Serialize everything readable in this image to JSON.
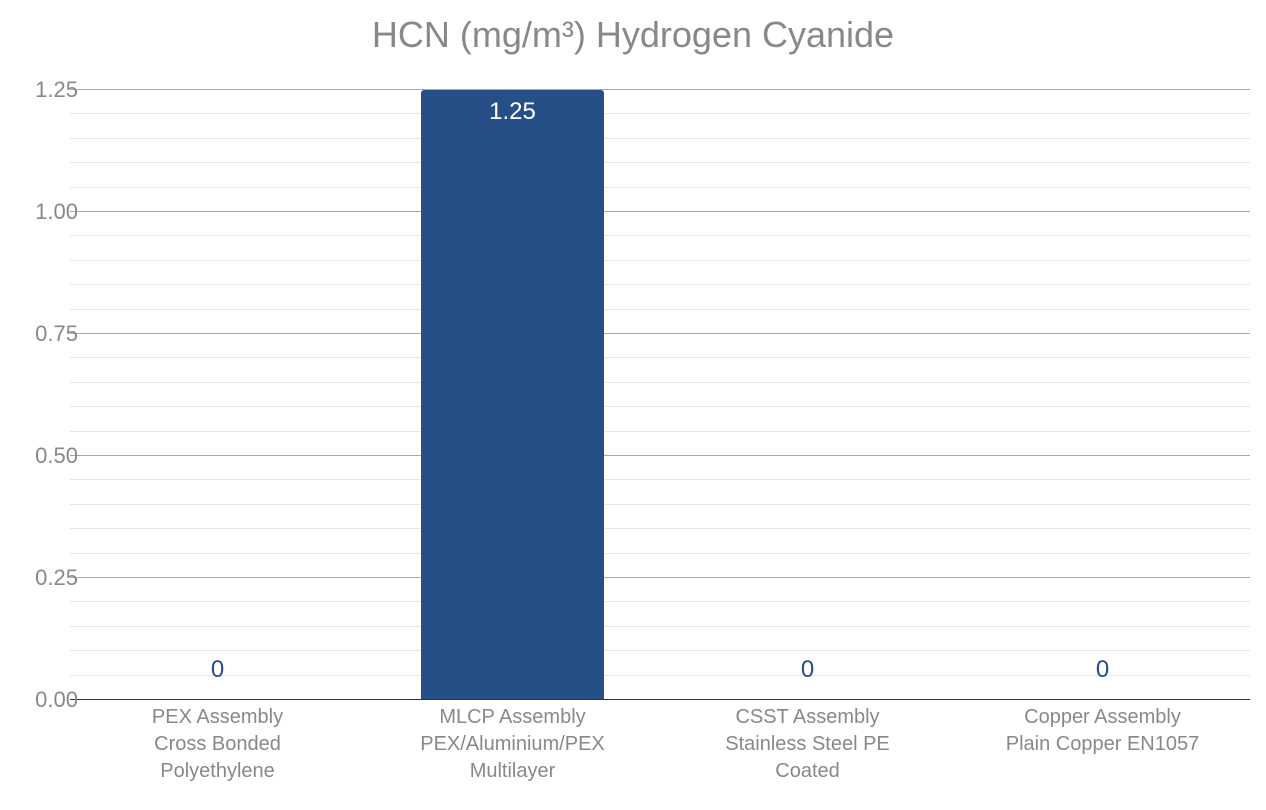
{
  "chart": {
    "type": "bar",
    "title": "HCN (mg/m³) Hydrogen Cyanide",
    "title_fontsize": 36,
    "title_color": "#888888",
    "background_color": "#ffffff",
    "bar_color": "#274f87",
    "grid_major_color": "#a9a9a9",
    "grid_minor_color": "#e6e6e6",
    "baseline_color": "#333333",
    "ytick_color": "#888888",
    "xtick_color": "#888888",
    "value_label_inside_color": "#ffffff",
    "value_label_above_color": "#274f87",
    "ylim": [
      0,
      1.25
    ],
    "ytick_major_step": 0.25,
    "ytick_minor_step": 0.05,
    "ytick_labels": [
      "0.00",
      "0.25",
      "0.50",
      "0.75",
      "1.00",
      "1.25"
    ],
    "ytick_values": [
      0.0,
      0.25,
      0.5,
      0.75,
      1.0,
      1.25
    ],
    "minor_tick_values": [
      0.05,
      0.1,
      0.15,
      0.2,
      0.3,
      0.35,
      0.4,
      0.45,
      0.55,
      0.6,
      0.65,
      0.7,
      0.8,
      0.85,
      0.9,
      0.95,
      1.05,
      1.1,
      1.15,
      1.2
    ],
    "tick_fontsize": 22,
    "xtick_fontsize": 20,
    "value_fontsize": 24,
    "bar_width_ratio": 0.62,
    "categories": [
      {
        "lines": [
          "PEX Assembly",
          "Cross Bonded",
          "Polyethylene"
        ],
        "value": 0,
        "value_label": "0"
      },
      {
        "lines": [
          "MLCP Assembly",
          "PEX/Aluminium/PEX",
          "Multilayer"
        ],
        "value": 1.25,
        "value_label": "1.25"
      },
      {
        "lines": [
          "CSST Assembly",
          "Stainless Steel PE",
          "Coated"
        ],
        "value": 0,
        "value_label": "0"
      },
      {
        "lines": [
          "Copper Assembly",
          "Plain Copper EN1057"
        ],
        "value": 0,
        "value_label": "0"
      }
    ]
  }
}
